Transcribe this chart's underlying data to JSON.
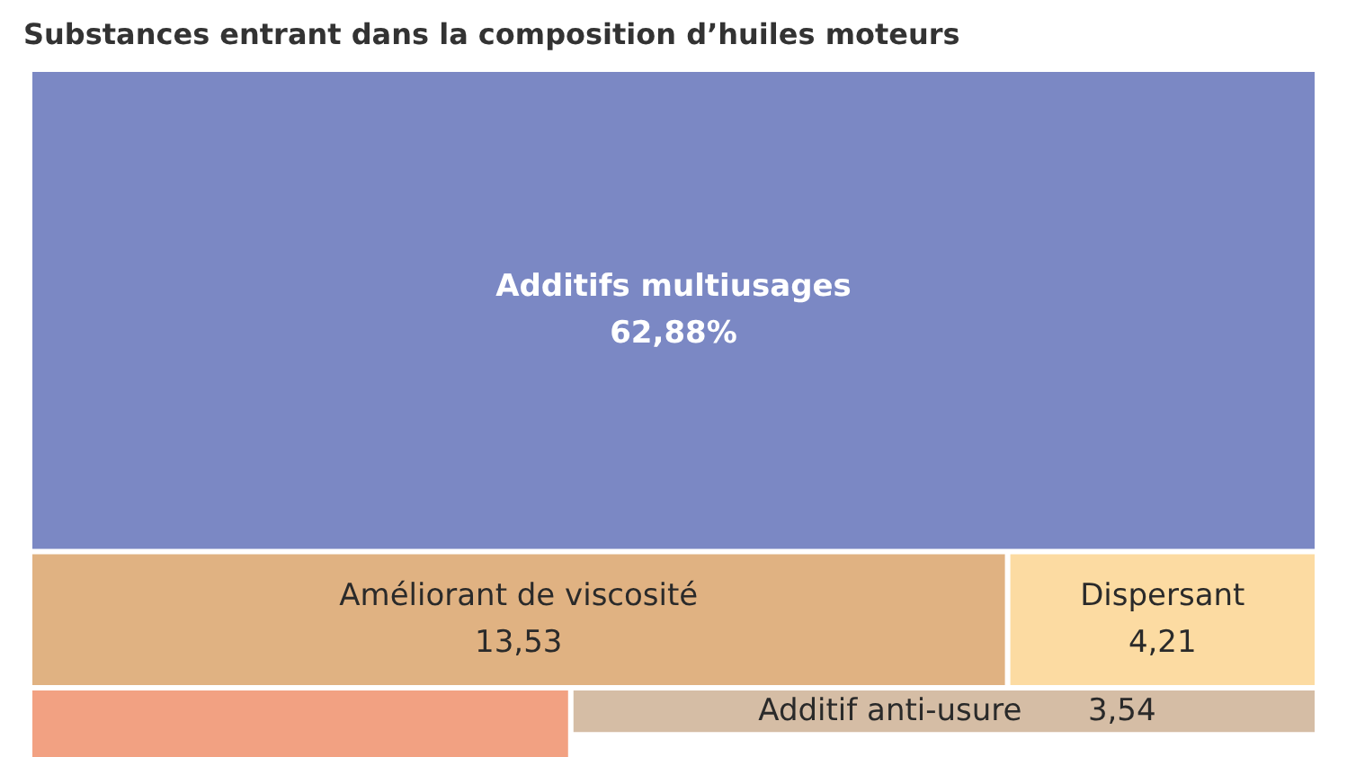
{
  "chart_data": {
    "type": "other",
    "title": "Substances entrant dans la composition d’huiles moteurs",
    "categories": [
      "Additifs multiusages",
      "Améliorant de viscosité",
      "Dispersant",
      null,
      "Additif anti-usure"
    ],
    "values": [
      62.88,
      13.53,
      4.21,
      null,
      3.54
    ],
    "value_labels": [
      "62,88%",
      "13,53",
      "4,21",
      null,
      "3,54"
    ],
    "colors": [
      "#7b88c4",
      "#e0b282",
      "#fcdba2",
      "#f2a182",
      "#d5bda5"
    ]
  }
}
